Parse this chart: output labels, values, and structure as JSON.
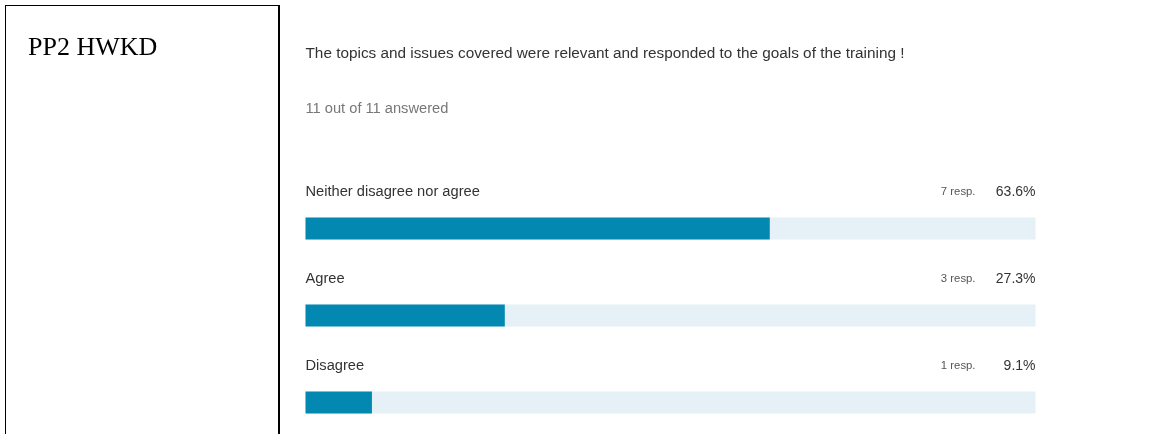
{
  "chart_data": {
    "type": "bar",
    "orientation": "horizontal",
    "title": "The topics and issues covered were relevant and responded to the goals of the training !",
    "subtitle": "11 out of 11 answered",
    "annotations": [
      "PP2 HWKD",
      "7 resp.",
      "3 resp.",
      "1 resp."
    ],
    "categories": [
      "Neither disagree nor agree",
      "Agree",
      "Disagree"
    ],
    "series": [
      {
        "color": "#0288b1",
        "values": [
          63.6,
          27.3,
          9.1
        ],
        "value_labels": [
          "63.6%",
          "27.3%",
          "9.1%"
        ]
      }
    ],
    "bands": [
      {
        "axis": "x",
        "from": 0,
        "to": 100,
        "color": "#e5f1f6"
      }
    ],
    "xlim": [
      0,
      100
    ],
    "tick_labels": false,
    "grid": false
  }
}
